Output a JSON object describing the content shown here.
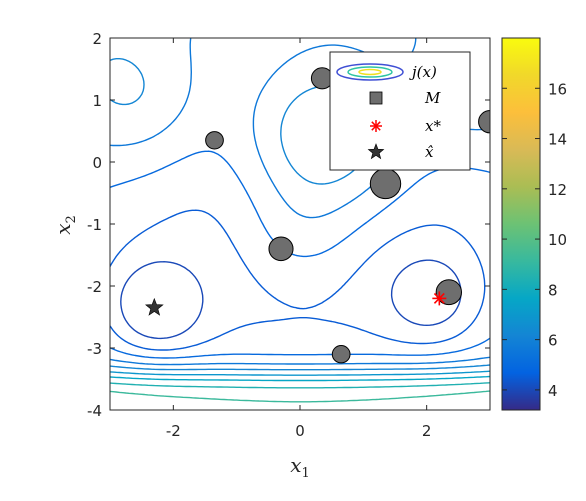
{
  "chart_data": {
    "type": "contour",
    "title": "",
    "xlabel": "x",
    "xlabel_sub": "1",
    "ylabel": "x",
    "ylabel_sub": "2",
    "xlim": [
      -3,
      3
    ],
    "ylim": [
      -4,
      2
    ],
    "xticks": [
      -2,
      0,
      2
    ],
    "xtick_labels": [
      "-2",
      "0",
      "2"
    ],
    "yticks": [
      2,
      1,
      0,
      -1,
      -2,
      -3,
      -4
    ],
    "ytick_labels": [
      "2",
      "1",
      "0",
      "-1",
      "-2",
      "-3",
      "-4"
    ],
    "colorbar": {
      "range": [
        3.2,
        18
      ],
      "ticks": [
        4,
        6,
        8,
        10,
        12,
        14,
        16
      ],
      "tick_labels": [
        "4",
        "6",
        "8",
        "10",
        "12",
        "14",
        "16"
      ],
      "colormap": "parula"
    },
    "contour_levels": [
      4.0,
      4.5,
      5.0,
      5.6,
      6.2,
      6.9,
      7.6,
      8.4,
      9.2,
      10.0,
      10.8,
      11.6,
      12.4,
      13.2,
      14.0,
      14.8,
      15.6,
      16.4,
      17.2
    ],
    "legend": {
      "placement": "top-right",
      "entries": [
        {
          "label": "j(x)",
          "marker": "contour"
        },
        {
          "label": "M",
          "marker": "square",
          "color": "#6e6e6e"
        },
        {
          "label": "x*",
          "marker": "asterisk",
          "color": "#ff0000"
        },
        {
          "label": "x̂",
          "marker": "star",
          "color": "#333333"
        }
      ]
    },
    "circles": [
      {
        "x": 0.35,
        "y": 1.35,
        "r": 0.17
      },
      {
        "x": -1.35,
        "y": 0.35,
        "r": 0.14
      },
      {
        "x": 1.35,
        "y": -0.35,
        "r": 0.24
      },
      {
        "x": -0.3,
        "y": -1.4,
        "r": 0.19
      },
      {
        "x": 2.35,
        "y": -2.1,
        "r": 0.2
      },
      {
        "x": 0.65,
        "y": -3.1,
        "r": 0.14
      },
      {
        "x": 3.0,
        "y": 0.65,
        "r": 0.18
      }
    ],
    "x_star": {
      "x": 2.2,
      "y": -2.2
    },
    "x_hat": {
      "x": -2.3,
      "y": -2.35
    }
  }
}
